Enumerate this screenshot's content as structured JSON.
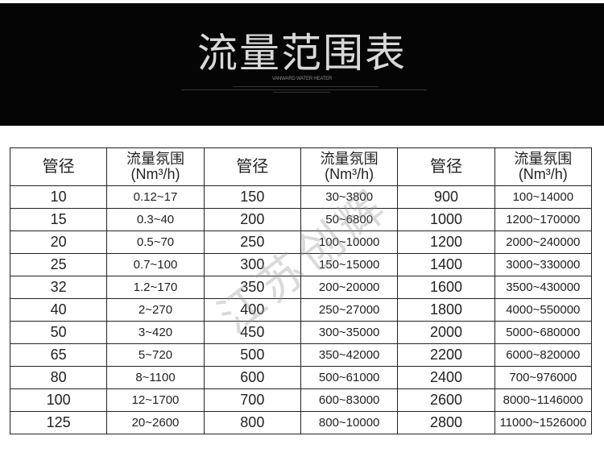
{
  "banner": {
    "title": "流量范围表",
    "subtitle": "VANWARD WATER HEATER"
  },
  "table": {
    "headers": [
      "管径",
      "流量氛围(Nm³/h)",
      "管径",
      "流量氛围(Nm³/h)",
      "管径",
      "流量氛围(Nm³/h)"
    ],
    "header_flow_line1": "流量氛围",
    "header_flow_line2": "(Nm³/h)",
    "rows": [
      [
        "10",
        "0.12~17",
        "150",
        "30~3800",
        "900",
        "100~14000"
      ],
      [
        "15",
        "0.3~40",
        "200",
        "50~6800",
        "1000",
        "1200~170000"
      ],
      [
        "20",
        "0.5~70",
        "250",
        "100~10000",
        "1200",
        "2000~240000"
      ],
      [
        "25",
        "0.7~100",
        "300",
        "150~15000",
        "1400",
        "3000~330000"
      ],
      [
        "32",
        "1.2~170",
        "350",
        "200~20000",
        "1600",
        "3500~430000"
      ],
      [
        "40",
        "2~270",
        "400",
        "250~27000",
        "1800",
        "4000~550000"
      ],
      [
        "50",
        "3~420",
        "450",
        "300~35000",
        "2000",
        "5000~680000"
      ],
      [
        "65",
        "5~720",
        "500",
        "350~42000",
        "2200",
        "6000~820000"
      ],
      [
        "80",
        "8~1100",
        "600",
        "500~61000",
        "2400",
        "700~976000"
      ],
      [
        "100",
        "12~1700",
        "700",
        "600~83000",
        "2600",
        "8000~1146000"
      ],
      [
        "125",
        "20~2600",
        "800",
        "800~10000",
        "2800",
        "11000~1526000"
      ]
    ]
  },
  "watermark": "江苏创辉"
}
